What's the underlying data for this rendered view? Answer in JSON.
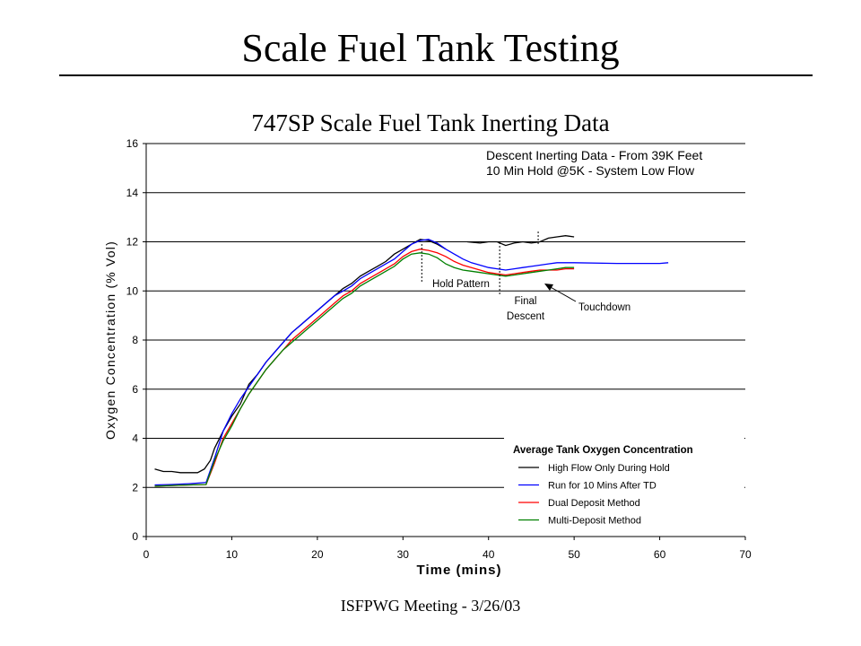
{
  "slide": {
    "title": "Scale Fuel Tank Testing",
    "footer": "ISFPWG Meeting - 3/26/03"
  },
  "chart_data": {
    "type": "line",
    "title": "747SP Scale Fuel Tank Inerting Data",
    "xlabel": "Time (mins)",
    "ylabel": "Oxygen Concentration (% Vol)",
    "xlim": [
      0,
      70
    ],
    "ylim": [
      0,
      16
    ],
    "xticks": [
      0,
      10,
      20,
      30,
      40,
      50,
      60,
      70
    ],
    "yticks": [
      0,
      2,
      4,
      6,
      8,
      10,
      12,
      14,
      16
    ],
    "grid": "horizontal",
    "subtitle_lines": [
      "Descent Inerting Data - From 39K Feet",
      "10 Min Hold @5K - System Low Flow"
    ],
    "legend": {
      "title": "Average Tank Oxygen Concentration",
      "placement": "bottom-right"
    },
    "annotations": [
      {
        "label": "Hold Pattern",
        "x": 32.2
      },
      {
        "label_lines": [
          "Final",
          "Descent"
        ],
        "x": 41.3
      },
      {
        "label": "Touchdown",
        "x": 45.8
      }
    ],
    "series": [
      {
        "name": "High Flow Only During Hold",
        "color": "#000000",
        "points": [
          [
            1,
            2.75
          ],
          [
            2,
            2.65
          ],
          [
            3,
            2.65
          ],
          [
            4,
            2.6
          ],
          [
            5,
            2.6
          ],
          [
            6,
            2.6
          ],
          [
            6.8,
            2.75
          ],
          [
            7.5,
            3.1
          ],
          [
            8,
            3.6
          ],
          [
            9,
            4.3
          ],
          [
            10,
            4.9
          ],
          [
            11,
            5.4
          ],
          [
            12,
            6.2
          ],
          [
            13,
            6.6
          ],
          [
            14,
            7.1
          ],
          [
            15,
            7.5
          ],
          [
            16,
            7.9
          ],
          [
            17,
            8.3
          ],
          [
            18,
            8.6
          ],
          [
            19,
            8.9
          ],
          [
            20,
            9.2
          ],
          [
            21,
            9.5
          ],
          [
            22,
            9.8
          ],
          [
            23,
            10.1
          ],
          [
            24,
            10.3
          ],
          [
            25,
            10.6
          ],
          [
            26,
            10.8
          ],
          [
            27,
            11.0
          ],
          [
            28,
            11.2
          ],
          [
            29,
            11.5
          ],
          [
            30,
            11.7
          ],
          [
            31,
            11.9
          ],
          [
            32,
            12.1
          ],
          [
            33,
            12.05
          ],
          [
            34,
            11.9
          ],
          [
            35,
            11.7
          ]
        ]
      },
      {
        "name": "High Flow Only During Hold",
        "color": "#000000",
        "points": [
          [
            37.5,
            12.0
          ],
          [
            39,
            11.95
          ],
          [
            40,
            12.0
          ],
          [
            41,
            12.0
          ],
          [
            42,
            11.85
          ],
          [
            43,
            11.95
          ],
          [
            44,
            12.0
          ],
          [
            45,
            11.95
          ],
          [
            46,
            12.0
          ],
          [
            47,
            12.15
          ],
          [
            48,
            12.2
          ],
          [
            49,
            12.25
          ],
          [
            50,
            12.2
          ]
        ]
      },
      {
        "name": "Run for 10 Mins After TD",
        "color": "#0000ff",
        "points": [
          [
            1,
            2.1
          ],
          [
            3,
            2.12
          ],
          [
            5,
            2.15
          ],
          [
            7,
            2.2
          ],
          [
            8,
            3.2
          ],
          [
            9,
            4.3
          ],
          [
            10,
            5.0
          ],
          [
            11,
            5.6
          ],
          [
            12,
            6.1
          ],
          [
            13,
            6.6
          ],
          [
            14,
            7.1
          ],
          [
            15,
            7.5
          ],
          [
            16,
            7.9
          ],
          [
            17,
            8.3
          ],
          [
            18,
            8.6
          ],
          [
            19,
            8.9
          ],
          [
            20,
            9.2
          ],
          [
            21,
            9.5
          ],
          [
            22,
            9.8
          ],
          [
            23,
            10.0
          ],
          [
            24,
            10.2
          ],
          [
            25,
            10.5
          ],
          [
            26,
            10.7
          ],
          [
            27,
            10.9
          ],
          [
            28,
            11.1
          ],
          [
            29,
            11.3
          ],
          [
            30,
            11.6
          ],
          [
            31,
            11.9
          ],
          [
            32,
            12.05
          ],
          [
            33,
            12.1
          ],
          [
            34,
            11.95
          ],
          [
            35,
            11.7
          ],
          [
            36,
            11.5
          ],
          [
            37,
            11.3
          ],
          [
            38,
            11.15
          ],
          [
            39,
            11.05
          ],
          [
            40,
            10.95
          ],
          [
            41,
            10.9
          ],
          [
            42,
            10.85
          ],
          [
            43,
            10.9
          ],
          [
            44,
            10.95
          ],
          [
            45,
            11.0
          ],
          [
            46,
            11.05
          ],
          [
            47,
            11.1
          ],
          [
            48,
            11.15
          ],
          [
            50,
            11.15
          ],
          [
            55,
            11.12
          ],
          [
            60,
            11.12
          ],
          [
            61,
            11.15
          ]
        ]
      },
      {
        "name": "Dual Deposit Method",
        "color": "#ff0000",
        "points": [
          [
            1,
            2.05
          ],
          [
            3,
            2.08
          ],
          [
            5,
            2.1
          ],
          [
            7,
            2.12
          ],
          [
            8,
            3.0
          ],
          [
            9,
            4.0
          ],
          [
            10,
            4.6
          ],
          [
            11,
            5.2
          ],
          [
            12,
            5.8
          ],
          [
            13,
            6.3
          ],
          [
            14,
            6.8
          ],
          [
            15,
            7.2
          ],
          [
            16,
            7.6
          ],
          [
            17,
            8.0
          ],
          [
            18,
            8.3
          ],
          [
            19,
            8.6
          ],
          [
            20,
            8.9
          ],
          [
            21,
            9.2
          ],
          [
            22,
            9.5
          ],
          [
            23,
            9.8
          ],
          [
            24,
            10.0
          ],
          [
            25,
            10.3
          ],
          [
            26,
            10.5
          ],
          [
            27,
            10.7
          ],
          [
            28,
            10.9
          ],
          [
            29,
            11.1
          ],
          [
            30,
            11.4
          ],
          [
            31,
            11.6
          ],
          [
            32,
            11.7
          ],
          [
            33,
            11.65
          ],
          [
            34,
            11.55
          ],
          [
            35,
            11.4
          ],
          [
            36,
            11.2
          ],
          [
            37,
            11.05
          ],
          [
            38,
            10.95
          ],
          [
            39,
            10.85
          ],
          [
            40,
            10.75
          ],
          [
            41,
            10.7
          ],
          [
            42,
            10.65
          ],
          [
            43,
            10.7
          ],
          [
            44,
            10.75
          ],
          [
            45,
            10.8
          ],
          [
            46,
            10.85
          ],
          [
            47,
            10.85
          ],
          [
            48,
            10.85
          ],
          [
            49,
            10.9
          ],
          [
            50,
            10.9
          ]
        ]
      },
      {
        "name": "Multi-Deposit Method",
        "color": "#008000",
        "points": [
          [
            1,
            2.05
          ],
          [
            3,
            2.08
          ],
          [
            5,
            2.1
          ],
          [
            7,
            2.12
          ],
          [
            8,
            3.1
          ],
          [
            9,
            3.9
          ],
          [
            10,
            4.5
          ],
          [
            11,
            5.2
          ],
          [
            12,
            5.8
          ],
          [
            13,
            6.3
          ],
          [
            14,
            6.8
          ],
          [
            15,
            7.2
          ],
          [
            16,
            7.6
          ],
          [
            17,
            7.9
          ],
          [
            18,
            8.2
          ],
          [
            19,
            8.5
          ],
          [
            20,
            8.8
          ],
          [
            21,
            9.1
          ],
          [
            22,
            9.4
          ],
          [
            23,
            9.7
          ],
          [
            24,
            9.9
          ],
          [
            25,
            10.2
          ],
          [
            26,
            10.4
          ],
          [
            27,
            10.6
          ],
          [
            28,
            10.8
          ],
          [
            29,
            11.0
          ],
          [
            30,
            11.3
          ],
          [
            31,
            11.5
          ],
          [
            32,
            11.55
          ],
          [
            33,
            11.5
          ],
          [
            34,
            11.35
          ],
          [
            35,
            11.1
          ],
          [
            36,
            10.95
          ],
          [
            37,
            10.85
          ],
          [
            38,
            10.8
          ],
          [
            39,
            10.75
          ],
          [
            40,
            10.7
          ],
          [
            41,
            10.65
          ],
          [
            42,
            10.6
          ],
          [
            43,
            10.65
          ],
          [
            44,
            10.7
          ],
          [
            45,
            10.75
          ],
          [
            46,
            10.8
          ],
          [
            47,
            10.85
          ],
          [
            48,
            10.9
          ],
          [
            49,
            10.95
          ],
          [
            50,
            10.95
          ]
        ]
      }
    ]
  }
}
